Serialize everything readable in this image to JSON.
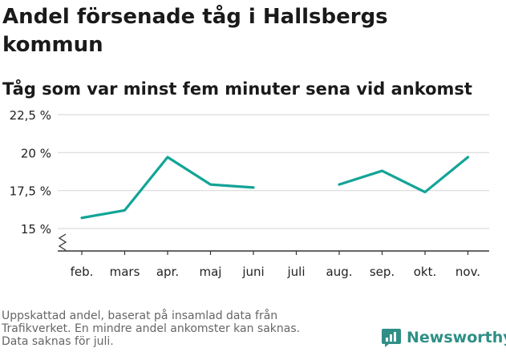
{
  "title": "Andel försenade tåg i Hallsbergs kommun",
  "subtitle": "Tåg som var minst fem minuter sena vid ankomst",
  "footnote": [
    "Uppskattad andel, baserat på insamlad data från",
    "Trafikverket. En mindre andel ankomster kan saknas.",
    "Data saknas för juli."
  ],
  "brand": {
    "name": "Newsworthy",
    "icon": "newsworthy-logo-icon",
    "color": "#2f8f86"
  },
  "colors": {
    "line": "#13a497",
    "grid": "#d9d9d9",
    "axis": "#333333"
  },
  "chart_data": {
    "type": "line",
    "categories": [
      "feb.",
      "mars",
      "apr.",
      "maj",
      "juni",
      "juli",
      "aug.",
      "sep.",
      "okt.",
      "nov."
    ],
    "series": [
      {
        "values": [
          15.7,
          16.2,
          19.7,
          17.9,
          17.7,
          null,
          17.9,
          18.8,
          17.4,
          19.7
        ]
      }
    ],
    "y_ticks": [
      15,
      17.5,
      20,
      22.5
    ],
    "y_tick_labels": [
      "15 %",
      "17,5 %",
      "20 %",
      "22,5 %"
    ],
    "ylim": [
      15,
      22.5
    ],
    "y_axis_break": true,
    "grid": true,
    "legend": "none"
  }
}
